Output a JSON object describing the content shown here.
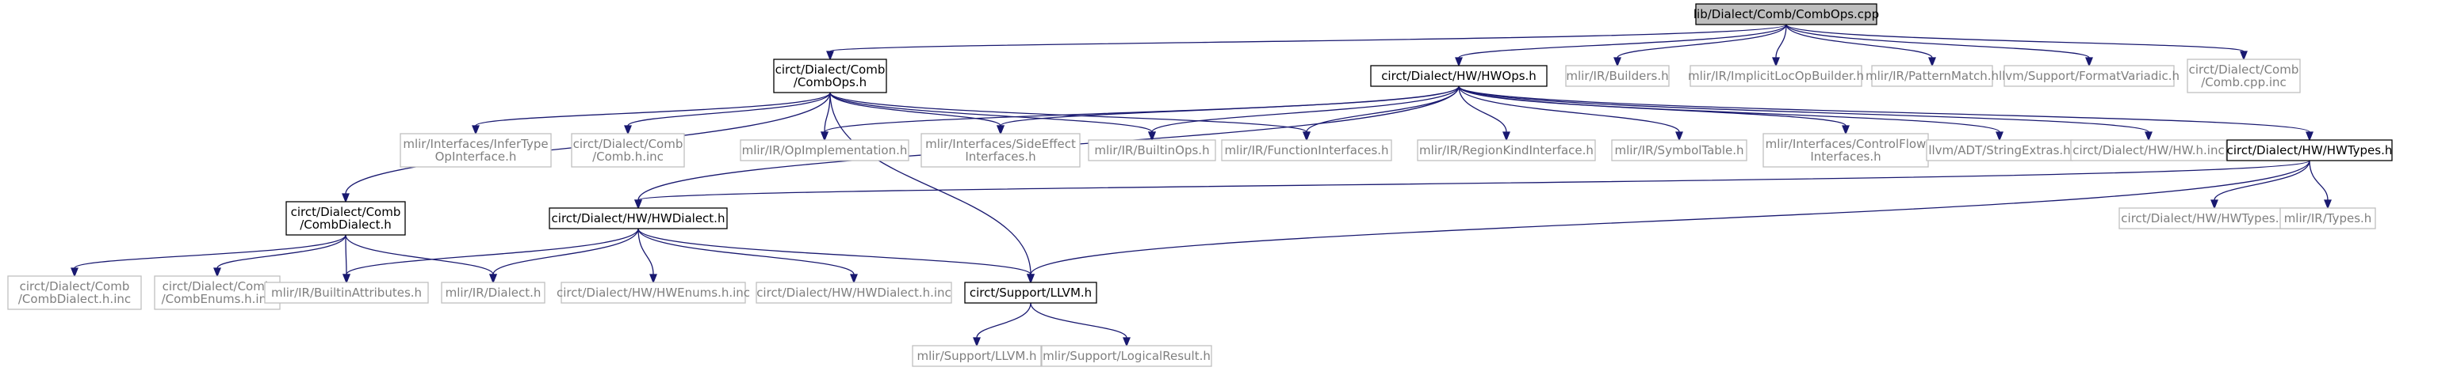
{
  "colors": {
    "edge": "#191970",
    "root_fill": "#bfbfbf",
    "boxed_border": "#000000",
    "external_border": "#bfbfbf",
    "external_text": "#7f7f7f",
    "text": "#000000"
  },
  "nodes": [
    {
      "id": "root",
      "kind": "root",
      "lines": [
        "lib/Dialect/Comb/CombOps.cpp"
      ]
    },
    {
      "id": "combops_h",
      "kind": "boxed",
      "lines": [
        "circt/Dialect/Comb",
        "/CombOps.h"
      ]
    },
    {
      "id": "hwops_h",
      "kind": "boxed",
      "lines": [
        "circt/Dialect/HW/HWOps.h"
      ]
    },
    {
      "id": "builders",
      "kind": "external",
      "lines": [
        "mlir/IR/Builders.h"
      ]
    },
    {
      "id": "implicitloc",
      "kind": "external",
      "lines": [
        "mlir/IR/ImplicitLocOpBuilder.h"
      ]
    },
    {
      "id": "patternmatch",
      "kind": "external",
      "lines": [
        "mlir/IR/PatternMatch.h"
      ]
    },
    {
      "id": "formatvariadic",
      "kind": "external",
      "lines": [
        "llvm/Support/FormatVariadic.h"
      ]
    },
    {
      "id": "comb_cpp_inc",
      "kind": "external",
      "lines": [
        "circt/Dialect/Comb",
        "/Comb.cpp.inc"
      ]
    },
    {
      "id": "infertype",
      "kind": "external",
      "lines": [
        "mlir/Interfaces/InferType",
        "OpInterface.h"
      ]
    },
    {
      "id": "comb_h_inc",
      "kind": "external",
      "lines": [
        "circt/Dialect/Comb",
        "/Comb.h.inc"
      ]
    },
    {
      "id": "opimpl",
      "kind": "external",
      "lines": [
        "mlir/IR/OpImplementation.h"
      ]
    },
    {
      "id": "sideeffect",
      "kind": "external",
      "lines": [
        "mlir/Interfaces/SideEffect",
        "Interfaces.h"
      ]
    },
    {
      "id": "builtinops",
      "kind": "external",
      "lines": [
        "mlir/IR/BuiltinOps.h"
      ]
    },
    {
      "id": "funcinterfaces",
      "kind": "external",
      "lines": [
        "mlir/IR/FunctionInterfaces.h"
      ]
    },
    {
      "id": "regionkind",
      "kind": "external",
      "lines": [
        "mlir/IR/RegionKindInterface.h"
      ]
    },
    {
      "id": "symboltable",
      "kind": "external",
      "lines": [
        "mlir/IR/SymbolTable.h"
      ]
    },
    {
      "id": "controlflow",
      "kind": "external",
      "lines": [
        "mlir/Interfaces/ControlFlow",
        "Interfaces.h"
      ]
    },
    {
      "id": "stringextras",
      "kind": "external",
      "lines": [
        "llvm/ADT/StringExtras.h"
      ]
    },
    {
      "id": "hw_h_inc",
      "kind": "external",
      "lines": [
        "circt/Dialect/HW/HW.h.inc"
      ]
    },
    {
      "id": "hwtypes_h",
      "kind": "boxed",
      "lines": [
        "circt/Dialect/HW/HWTypes.h"
      ]
    },
    {
      "id": "combdialect_h",
      "kind": "boxed",
      "lines": [
        "circt/Dialect/Comb",
        "/CombDialect.h"
      ]
    },
    {
      "id": "hwdialect_h",
      "kind": "boxed",
      "lines": [
        "circt/Dialect/HW/HWDialect.h"
      ]
    },
    {
      "id": "hwtypes_h_inc",
      "kind": "external",
      "lines": [
        "circt/Dialect/HW/HWTypes.h.inc"
      ]
    },
    {
      "id": "types_h",
      "kind": "external",
      "lines": [
        "mlir/IR/Types.h"
      ]
    },
    {
      "id": "combdialect_h_inc",
      "kind": "external",
      "lines": [
        "circt/Dialect/Comb",
        "/CombDialect.h.inc"
      ]
    },
    {
      "id": "combenums_h_inc",
      "kind": "external",
      "lines": [
        "circt/Dialect/Comb",
        "/CombEnums.h.inc"
      ]
    },
    {
      "id": "builtinattrs",
      "kind": "external",
      "lines": [
        "mlir/IR/BuiltinAttributes.h"
      ]
    },
    {
      "id": "dialect_h",
      "kind": "external",
      "lines": [
        "mlir/IR/Dialect.h"
      ]
    },
    {
      "id": "hwenums_h_inc",
      "kind": "external",
      "lines": [
        "circt/Dialect/HW/HWEnums.h.inc"
      ]
    },
    {
      "id": "hwdialect_h_inc",
      "kind": "external",
      "lines": [
        "circt/Dialect/HW/HWDialect.h.inc"
      ]
    },
    {
      "id": "support_llvm_h",
      "kind": "boxed",
      "lines": [
        "circt/Support/LLVM.h"
      ]
    },
    {
      "id": "mlir_support_llvm_h",
      "kind": "external",
      "lines": [
        "mlir/Support/LLVM.h"
      ]
    },
    {
      "id": "logicalresult",
      "kind": "external",
      "lines": [
        "mlir/Support/LogicalResult.h"
      ]
    }
  ],
  "edges": [
    [
      "root",
      "combops_h"
    ],
    [
      "root",
      "hwops_h"
    ],
    [
      "root",
      "builders"
    ],
    [
      "root",
      "implicitloc"
    ],
    [
      "root",
      "patternmatch"
    ],
    [
      "root",
      "formatvariadic"
    ],
    [
      "root",
      "comb_cpp_inc"
    ],
    [
      "combops_h",
      "infertype"
    ],
    [
      "combops_h",
      "comb_h_inc"
    ],
    [
      "combops_h",
      "opimpl"
    ],
    [
      "combops_h",
      "sideeffect"
    ],
    [
      "combops_h",
      "builtinops"
    ],
    [
      "combops_h",
      "funcinterfaces"
    ],
    [
      "combops_h",
      "combdialect_h"
    ],
    [
      "combops_h",
      "support_llvm_h"
    ],
    [
      "hwops_h",
      "opimpl"
    ],
    [
      "hwops_h",
      "sideeffect"
    ],
    [
      "hwops_h",
      "builtinops"
    ],
    [
      "hwops_h",
      "funcinterfaces"
    ],
    [
      "hwops_h",
      "regionkind"
    ],
    [
      "hwops_h",
      "symboltable"
    ],
    [
      "hwops_h",
      "controlflow"
    ],
    [
      "hwops_h",
      "stringextras"
    ],
    [
      "hwops_h",
      "hw_h_inc"
    ],
    [
      "hwops_h",
      "hwtypes_h"
    ],
    [
      "hwops_h",
      "hwdialect_h"
    ],
    [
      "hwtypes_h",
      "hwdialect_h"
    ],
    [
      "hwtypes_h",
      "hwtypes_h_inc"
    ],
    [
      "hwtypes_h",
      "types_h"
    ],
    [
      "hwtypes_h",
      "support_llvm_h"
    ],
    [
      "combdialect_h",
      "combdialect_h_inc"
    ],
    [
      "combdialect_h",
      "combenums_h_inc"
    ],
    [
      "combdialect_h",
      "builtinattrs"
    ],
    [
      "combdialect_h",
      "dialect_h"
    ],
    [
      "hwdialect_h",
      "builtinattrs"
    ],
    [
      "hwdialect_h",
      "dialect_h"
    ],
    [
      "hwdialect_h",
      "hwenums_h_inc"
    ],
    [
      "hwdialect_h",
      "hwdialect_h_inc"
    ],
    [
      "hwdialect_h",
      "support_llvm_h"
    ],
    [
      "support_llvm_h",
      "mlir_support_llvm_h"
    ],
    [
      "support_llvm_h",
      "logicalresult"
    ]
  ]
}
